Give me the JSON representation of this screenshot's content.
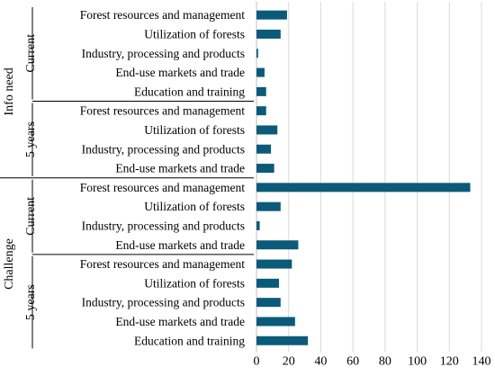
{
  "colors": {
    "bar": "#0b5a7a",
    "grid": "#d9d9d9"
  },
  "chart_data": {
    "type": "bar",
    "orientation": "horizontal",
    "xlim": [
      0,
      140
    ],
    "xticks": [
      "0",
      "20",
      "40",
      "60",
      "80",
      "100",
      "120",
      "140"
    ],
    "grid": "vertical",
    "groups": [
      {
        "label": "Info need",
        "subgroups": [
          {
            "label": "Current",
            "items": [
              {
                "category": "Forest resources and management",
                "value": 19
              },
              {
                "category": "Utilization of forests",
                "value": 15
              },
              {
                "category": "Industry, processing and products",
                "value": 1
              },
              {
                "category": "End-use markets and trade",
                "value": 5
              },
              {
                "category": "Education and training",
                "value": 6
              }
            ]
          },
          {
            "label": "5 years",
            "items": [
              {
                "category": "Forest resources and management",
                "value": 6
              },
              {
                "category": "Utilization of forests",
                "value": 13
              },
              {
                "category": "Industry, processing and products",
                "value": 9
              },
              {
                "category": "End-use markets and trade",
                "value": 11
              }
            ]
          }
        ]
      },
      {
        "label": "Challenge",
        "subgroups": [
          {
            "label": "Current",
            "items": [
              {
                "category": "Forest resources and management",
                "value": 133
              },
              {
                "category": "Utilization of forests",
                "value": 15
              },
              {
                "category": "Industry, processing and products",
                "value": 2
              },
              {
                "category": "End-use markets and trade",
                "value": 26
              }
            ]
          },
          {
            "label": "5 years",
            "items": [
              {
                "category": "Forest resources and management",
                "value": 22
              },
              {
                "category": "Utilization of forests",
                "value": 14
              },
              {
                "category": "Industry, processing and products",
                "value": 15
              },
              {
                "category": "End-use markets and trade",
                "value": 24
              },
              {
                "category": "Education and training",
                "value": 32
              }
            ]
          }
        ]
      }
    ]
  }
}
